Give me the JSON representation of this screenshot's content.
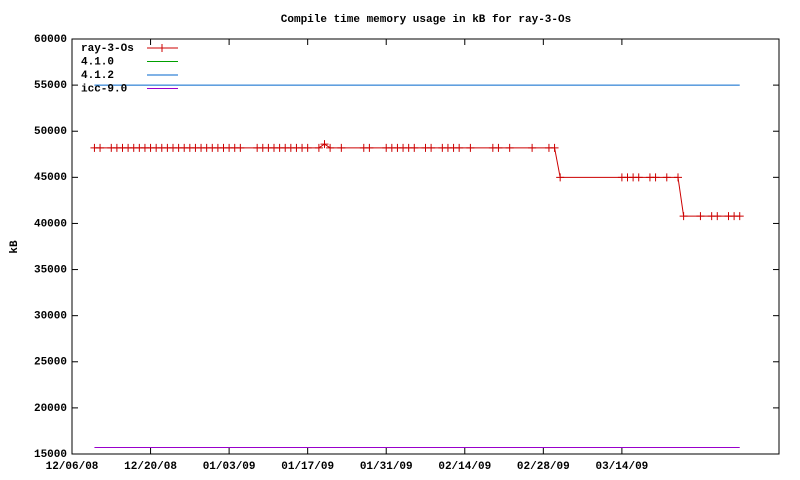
{
  "chart_data": {
    "type": "line",
    "title": "Compile time memory usage in kB for ray-3-Os",
    "y_label": "kB",
    "ylim": [
      15000,
      60000
    ],
    "yticks": [
      15000,
      20000,
      25000,
      30000,
      35000,
      40000,
      45000,
      50000,
      55000,
      60000
    ],
    "xlim": [
      0,
      126
    ],
    "xticks": [
      {
        "value": 0,
        "label": "12/06/08"
      },
      {
        "value": 14,
        "label": "12/20/08"
      },
      {
        "value": 28,
        "label": "01/03/09"
      },
      {
        "value": 42,
        "label": "01/17/09"
      },
      {
        "value": 56,
        "label": "01/31/09"
      },
      {
        "value": 70,
        "label": "02/14/09"
      },
      {
        "value": 84,
        "label": "02/28/09"
      },
      {
        "value": 98,
        "label": "03/14/09"
      }
    ],
    "legend": "top-left",
    "series": [
      {
        "name": "ray-3-Os",
        "color": "#cc0000",
        "marker": "plus",
        "x": [
          4,
          5,
          7,
          8,
          9,
          10,
          11,
          12,
          13,
          14,
          15,
          16,
          17,
          18,
          19,
          20,
          21,
          22,
          23,
          24,
          25,
          26,
          27,
          28,
          29,
          30,
          33,
          34,
          35,
          36,
          37,
          38,
          39,
          40,
          41,
          42,
          44,
          45,
          46,
          48,
          52,
          53,
          56,
          57,
          58,
          59,
          60,
          61,
          63,
          64,
          66,
          67,
          68,
          69,
          71,
          75,
          76,
          78,
          82,
          85,
          86,
          87,
          98,
          99,
          100,
          101,
          103,
          104,
          106,
          108,
          109,
          112,
          114,
          115,
          117,
          118,
          119
        ],
        "values": [
          48200,
          48200,
          48200,
          48200,
          48200,
          48200,
          48200,
          48200,
          48200,
          48200,
          48200,
          48200,
          48200,
          48200,
          48200,
          48200,
          48200,
          48200,
          48200,
          48200,
          48200,
          48200,
          48200,
          48200,
          48200,
          48200,
          48200,
          48200,
          48200,
          48200,
          48200,
          48200,
          48200,
          48200,
          48200,
          48200,
          48200,
          48600,
          48200,
          48200,
          48200,
          48200,
          48200,
          48200,
          48200,
          48200,
          48200,
          48200,
          48200,
          48200,
          48200,
          48200,
          48200,
          48200,
          48200,
          48200,
          48200,
          48200,
          48200,
          48200,
          48200,
          45000,
          45000,
          45000,
          45000,
          45000,
          45000,
          45000,
          45000,
          45000,
          40800,
          40800,
          40800,
          40800,
          40800,
          40800,
          40800
        ]
      },
      {
        "name": "4.1.0",
        "color": "#00a000",
        "x": [],
        "values": []
      },
      {
        "name": "4.1.2",
        "color": "#0066cc",
        "x": [
          4,
          119
        ],
        "values": [
          55000,
          55000
        ]
      },
      {
        "name": "icc-9.0",
        "color": "#9900cc",
        "x": [
          4,
          119
        ],
        "values": [
          15700,
          15700
        ]
      }
    ]
  }
}
